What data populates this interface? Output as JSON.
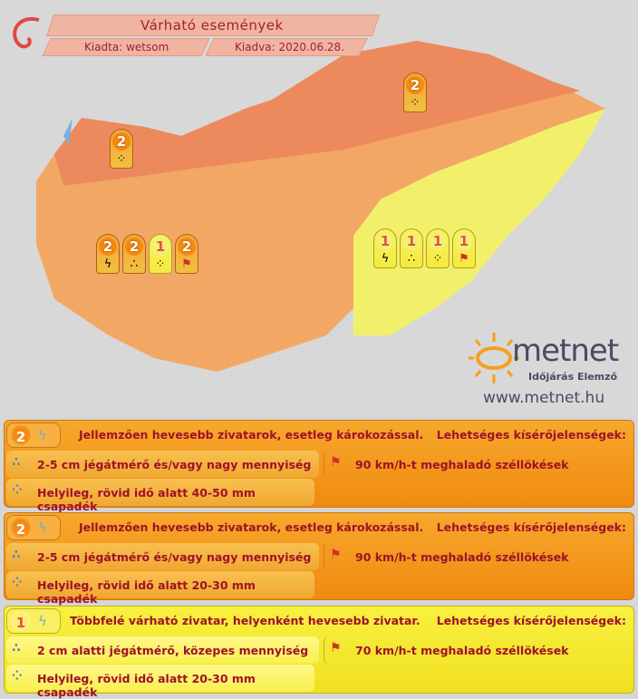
{
  "header": {
    "title": "Várható események",
    "issued_by": "Kiadta: wetsom",
    "issued_on": "Kiadva: 2020.06.28."
  },
  "logo": {
    "name": "metnet",
    "tagline": "Időjárás Elemző",
    "url": "www.metnet.hu"
  },
  "colors": {
    "level2_north": "#ec8a5e",
    "level2": "#f2a864",
    "level1": "#f2f06a",
    "background": "#d6d6d6"
  },
  "map_markers": [
    {
      "level": "2",
      "icon": "rain-icon"
    },
    {
      "level": "2",
      "icon": "rain-icon"
    },
    {
      "level": "2",
      "icon": "thunderstorm-icon"
    },
    {
      "level": "2",
      "icon": "hail-icon"
    },
    {
      "level": "1",
      "icon": "rain-icon"
    },
    {
      "level": "2",
      "icon": "wind-icon"
    },
    {
      "level": "1",
      "icon": "thunderstorm-icon"
    },
    {
      "level": "1",
      "icon": "hail-icon"
    },
    {
      "level": "1",
      "icon": "rain-icon"
    },
    {
      "level": "1",
      "icon": "wind-icon"
    }
  ],
  "panels": [
    {
      "level": "2",
      "title": "Jellemzően hevesebb zivatarok, esetleg károkozással.",
      "accomp": "Lehetséges kísérőjelenségek:",
      "hail": "2-5 cm jégátmérő és/vagy nagy mennyiség",
      "wind": "90 km/h-t meghaladó széllökések",
      "rain": "Helyileg, rövid idő alatt 40-50 mm csapadék"
    },
    {
      "level": "2",
      "title": "Jellemzően hevesebb zivatarok, esetleg károkozással.",
      "accomp": "Lehetséges kísérőjelenségek:",
      "hail": "2-5 cm jégátmérő és/vagy nagy mennyiség",
      "wind": "90 km/h-t meghaladó széllökések",
      "rain": "Helyileg, rövid idő alatt 20-30 mm csapadék"
    },
    {
      "level": "1",
      "title": "Többfelé várható zivatar, helyenként hevesebb zivatar.",
      "accomp": "Lehetséges kísérőjelenségek:",
      "hail": "2 cm alatti jégátmérő, közepes mennyiség",
      "wind": "70 km/h-t meghaladó széllökések",
      "rain": "Helyileg, rövid idő alatt 20-30 mm csapadék"
    }
  ]
}
